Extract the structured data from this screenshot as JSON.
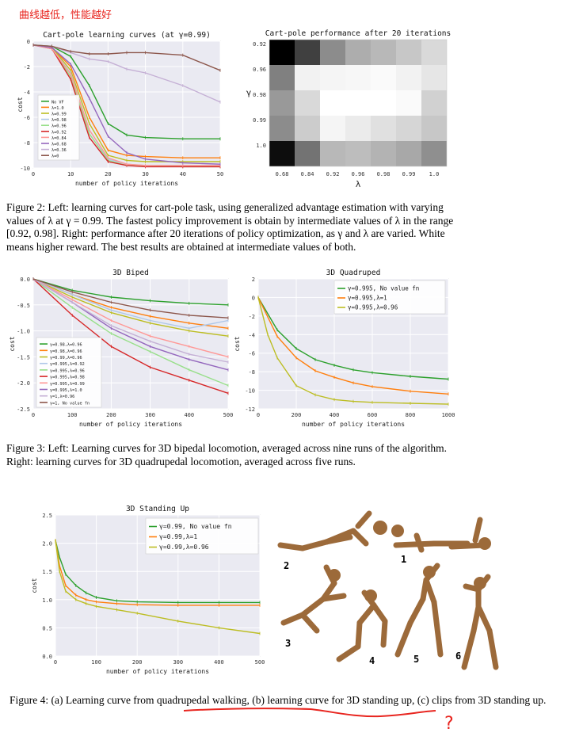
{
  "note": "曲线越低，性能越好",
  "chart_data": [
    {
      "type": "line",
      "title": "Cart-pole learning curves (at γ=0.99)",
      "xlabel": "number of policy iterations",
      "ylabel": "cost",
      "xlim": [
        0,
        50
      ],
      "ylim": [
        -10,
        0
      ],
      "xticks": [
        "0",
        "10",
        "20",
        "30",
        "40",
        "50"
      ],
      "yticks": [
        "0",
        "-2",
        "-4",
        "-6",
        "-8",
        "-10"
      ],
      "legend_position": "left",
      "series": [
        {
          "name": "No VF",
          "color": "#2ca02c",
          "x": [
            0,
            5,
            10,
            15,
            20,
            25,
            30,
            40,
            50
          ],
          "y": [
            -0.3,
            -0.4,
            -1.2,
            -3.5,
            -6.5,
            -7.4,
            -7.6,
            -7.7,
            -7.7
          ]
        },
        {
          "name": "λ=1.0",
          "color": "#ff7f0e",
          "x": [
            0,
            5,
            10,
            15,
            20,
            25,
            30,
            40,
            50
          ],
          "y": [
            -0.3,
            -0.5,
            -2,
            -6,
            -8.6,
            -9,
            -9.1,
            -9.2,
            -9.2
          ]
        },
        {
          "name": "λ=0.99",
          "color": "#bcbd22",
          "x": [
            0,
            5,
            10,
            15,
            20,
            25,
            30,
            40,
            50
          ],
          "y": [
            -0.3,
            -0.5,
            -2.3,
            -6.5,
            -9,
            -9.4,
            -9.5,
            -9.5,
            -9.5
          ]
        },
        {
          "name": "λ=0.98",
          "color": "#aec7e8",
          "x": [
            0,
            5,
            10,
            15,
            20,
            25,
            30,
            40,
            50
          ],
          "y": [
            -0.3,
            -0.6,
            -2.5,
            -7,
            -9.3,
            -9.7,
            -9.8,
            -9.8,
            -9.8
          ]
        },
        {
          "name": "λ=0.96",
          "color": "#98df8a",
          "x": [
            0,
            5,
            10,
            15,
            20,
            25,
            30,
            40,
            50
          ],
          "y": [
            -0.3,
            -0.6,
            -2.8,
            -7.3,
            -9.4,
            -9.8,
            -9.8,
            -9.9,
            -9.9
          ]
        },
        {
          "name": "λ=0.92",
          "color": "#d62728",
          "x": [
            0,
            5,
            10,
            15,
            20,
            25,
            30,
            40,
            50
          ],
          "y": [
            -0.3,
            -0.6,
            -3,
            -7.6,
            -9.5,
            -9.8,
            -9.9,
            -9.9,
            -9.9
          ]
        },
        {
          "name": "λ=0.84",
          "color": "#ff9896",
          "x": [
            0,
            5,
            10,
            15,
            20,
            25,
            30,
            40,
            50
          ],
          "y": [
            -0.3,
            -0.6,
            -2.6,
            -7,
            -9.2,
            -9.7,
            -9.8,
            -9.8,
            -9.8
          ]
        },
        {
          "name": "λ=0.68",
          "color": "#9467bd",
          "x": [
            0,
            5,
            10,
            15,
            20,
            25,
            30,
            40,
            50
          ],
          "y": [
            -0.3,
            -0.5,
            -1.8,
            -4.5,
            -7.5,
            -8.8,
            -9.3,
            -9.6,
            -9.7
          ]
        },
        {
          "name": "λ=0.36",
          "color": "#c5b0d5",
          "x": [
            0,
            5,
            10,
            15,
            20,
            25,
            30,
            40,
            50
          ],
          "y": [
            -0.3,
            -0.4,
            -0.9,
            -1.4,
            -1.6,
            -2.2,
            -2.5,
            -3.5,
            -4.8
          ]
        },
        {
          "name": "λ=0",
          "color": "#8c564b",
          "x": [
            0,
            5,
            10,
            15,
            20,
            25,
            30,
            40,
            50
          ],
          "y": [
            -0.3,
            -0.4,
            -0.8,
            -1.0,
            -1.0,
            -0.9,
            -0.9,
            -1.1,
            -2.3
          ]
        }
      ]
    },
    {
      "type": "heatmap",
      "title": "Cart-pole performance after 20 iterations",
      "xlabel": "λ",
      "ylabel": "γ",
      "x_categories": [
        "0.68",
        "0.84",
        "0.92",
        "0.96",
        "0.98",
        "0.99",
        "1.0"
      ],
      "y_categories": [
        "0.92",
        "0.96",
        "0.98",
        "0.99",
        "1.0"
      ],
      "values": [
        [
          0.0,
          0.25,
          0.55,
          0.68,
          0.72,
          0.78,
          0.85
        ],
        [
          0.5,
          0.95,
          0.96,
          0.97,
          0.98,
          0.95,
          0.9
        ],
        [
          0.6,
          0.85,
          1.0,
          1.0,
          1.0,
          0.98,
          0.82
        ],
        [
          0.55,
          0.8,
          0.96,
          0.92,
          0.88,
          0.84,
          0.78
        ],
        [
          0.05,
          0.45,
          0.72,
          0.74,
          0.7,
          0.66,
          0.56
        ]
      ],
      "colormap": "gray, white = higher reward"
    },
    {
      "type": "line",
      "title": "3D Biped",
      "xlabel": "number of policy iterations",
      "ylabel": "cost",
      "xlim": [
        0,
        500
      ],
      "ylim": [
        -2.5,
        0
      ],
      "xticks": [
        "0",
        "100",
        "200",
        "300",
        "400",
        "500"
      ],
      "yticks": [
        "0.0",
        "-0.5",
        "-1.0",
        "-1.5",
        "-2.0",
        "-2.5"
      ],
      "legend_position": "lower-left",
      "series": [
        {
          "name": "γ=0.98,λ=0.96",
          "color": "#2ca02c",
          "x": [
            0,
            100,
            200,
            300,
            400,
            500
          ],
          "y": [
            0,
            -0.22,
            -0.35,
            -0.42,
            -0.47,
            -0.5
          ]
        },
        {
          "name": "γ=0.98,λ=0.96",
          "color": "#ff7f0e",
          "x": [
            0,
            100,
            200,
            300,
            400,
            500
          ],
          "y": [
            0,
            -0.3,
            -0.55,
            -0.72,
            -0.85,
            -0.95
          ]
        },
        {
          "name": "γ=0.99,λ=0.96",
          "color": "#bcbd22",
          "x": [
            0,
            100,
            200,
            300,
            400,
            500
          ],
          "y": [
            0,
            -0.35,
            -0.65,
            -0.85,
            -1.0,
            -1.1
          ]
        },
        {
          "name": "γ=0.995,λ=0.92",
          "color": "#aec7e8",
          "x": [
            0,
            100,
            200,
            300,
            400,
            500
          ],
          "y": [
            0,
            -0.3,
            -0.6,
            -0.8,
            -0.95,
            -0.8
          ]
        },
        {
          "name": "γ=0.995,λ=0.96",
          "color": "#98df8a",
          "x": [
            0,
            100,
            200,
            300,
            400,
            500
          ],
          "y": [
            0,
            -0.55,
            -1.05,
            -1.4,
            -1.75,
            -2.05
          ]
        },
        {
          "name": "γ=0.995,λ=0.98",
          "color": "#d62728",
          "x": [
            0,
            100,
            200,
            300,
            400,
            500
          ],
          "y": [
            0,
            -0.7,
            -1.3,
            -1.7,
            -1.95,
            -2.2
          ]
        },
        {
          "name": "γ=0.995,λ=0.99",
          "color": "#ff9896",
          "x": [
            0,
            100,
            200,
            300,
            400,
            500
          ],
          "y": [
            0,
            -0.4,
            -0.8,
            -1.1,
            -1.3,
            -1.5
          ]
        },
        {
          "name": "γ=0.995,λ=1.0",
          "color": "#9467bd",
          "x": [
            0,
            100,
            200,
            300,
            400,
            500
          ],
          "y": [
            0,
            -0.45,
            -0.95,
            -1.3,
            -1.55,
            -1.75
          ]
        },
        {
          "name": "γ=1,λ=0.96",
          "color": "#c5b0d5",
          "x": [
            0,
            100,
            200,
            300,
            400,
            500
          ],
          "y": [
            0,
            -0.45,
            -0.9,
            -1.2,
            -1.45,
            -1.6
          ]
        },
        {
          "name": "γ=1, No value fn",
          "color": "#8c564b",
          "x": [
            0,
            100,
            200,
            300,
            400,
            500
          ],
          "y": [
            0,
            -0.25,
            -0.45,
            -0.6,
            -0.7,
            -0.75
          ]
        }
      ]
    },
    {
      "type": "line",
      "title": "3D Quadruped",
      "xlabel": "number of policy iterations",
      "ylabel": "cost",
      "xlim": [
        0,
        1000
      ],
      "ylim": [
        -12,
        2
      ],
      "xticks": [
        "0",
        "200",
        "400",
        "600",
        "800",
        "1000"
      ],
      "yticks": [
        "2",
        "0",
        "-2",
        "-4",
        "-6",
        "-8",
        "-10",
        "-12"
      ],
      "legend_position": "top-right",
      "series": [
        {
          "name": "γ=0.995, No value fn",
          "color": "#2ca02c",
          "x": [
            0,
            100,
            200,
            300,
            400,
            500,
            600,
            800,
            1000
          ],
          "y": [
            0,
            -3.5,
            -5.5,
            -6.7,
            -7.3,
            -7.8,
            -8.1,
            -8.5,
            -8.8
          ]
        },
        {
          "name": "γ=0.995,λ=1",
          "color": "#ff7f0e",
          "x": [
            0,
            100,
            200,
            300,
            400,
            500,
            600,
            800,
            1000
          ],
          "y": [
            0,
            -4.2,
            -6.5,
            -7.9,
            -8.6,
            -9.2,
            -9.6,
            -10.1,
            -10.4
          ]
        },
        {
          "name": "γ=0.995,λ=0.96",
          "color": "#bcbd22",
          "x": [
            0,
            50,
            100,
            200,
            300,
            400,
            500,
            600,
            800,
            1000
          ],
          "y": [
            0,
            -4,
            -6.5,
            -9.5,
            -10.5,
            -11,
            -11.2,
            -11.3,
            -11.4,
            -11.5
          ]
        }
      ]
    },
    {
      "type": "line",
      "title": "3D Standing Up",
      "xlabel": "number of policy iterations",
      "ylabel": "cost",
      "xlim": [
        0,
        500
      ],
      "ylim": [
        0,
        2.5
      ],
      "xticks": [
        "0",
        "100",
        "200",
        "300",
        "400",
        "500"
      ],
      "yticks": [
        "0.0",
        "0.5",
        "1.0",
        "1.5",
        "2.0",
        "2.5"
      ],
      "legend_position": "top-right",
      "series": [
        {
          "name": "γ=0.99, No value fn",
          "color": "#2ca02c",
          "x": [
            0,
            10,
            25,
            50,
            75,
            100,
            150,
            200,
            300,
            400,
            500
          ],
          "y": [
            2.05,
            1.75,
            1.45,
            1.25,
            1.12,
            1.04,
            0.98,
            0.96,
            0.95,
            0.95,
            0.95
          ]
        },
        {
          "name": "γ=0.99,λ=1",
          "color": "#ff7f0e",
          "x": [
            0,
            10,
            25,
            50,
            75,
            100,
            150,
            200,
            300,
            400,
            500
          ],
          "y": [
            2.05,
            1.6,
            1.25,
            1.08,
            1.0,
            0.96,
            0.93,
            0.91,
            0.9,
            0.9,
            0.9
          ]
        },
        {
          "name": "γ=0.99,λ=0.96",
          "color": "#bcbd22",
          "x": [
            0,
            10,
            25,
            50,
            75,
            100,
            150,
            200,
            300,
            400,
            500
          ],
          "y": [
            2.05,
            1.5,
            1.15,
            1.0,
            0.93,
            0.88,
            0.82,
            0.76,
            0.62,
            0.5,
            0.4
          ]
        }
      ]
    }
  ],
  "figure4_labels": [
    "2",
    "1",
    "3",
    "4",
    "5",
    "6"
  ],
  "captions": {
    "fig2": "Figure 2: Left: learning curves for cart-pole task, using generalized advantage estimation with varying values of λ at γ = 0.99. The fastest policy improvement is obtain by intermediate values of λ in the range [0.92, 0.98]. Right: performance after 20 iterations of policy optimization, as γ and λ are varied. White means higher reward. The best results are obtained at intermediate values of both.",
    "fig3": "Figure 3: Left: Learning curves for 3D bipedal locomotion, averaged across nine runs of the algorithm. Right: learning curves for 3D quadrupedal locomotion, averaged across five runs.",
    "fig4": "Figure 4: (a) Learning curve from quadrupedal walking, (b) learning curve for 3D standing up, (c) clips from 3D standing up."
  },
  "annotation_mark": "?",
  "colors": {
    "annotation": "#e8251f",
    "axes_bg": "#eaeaf2",
    "figure_bg": "#ffffff"
  }
}
